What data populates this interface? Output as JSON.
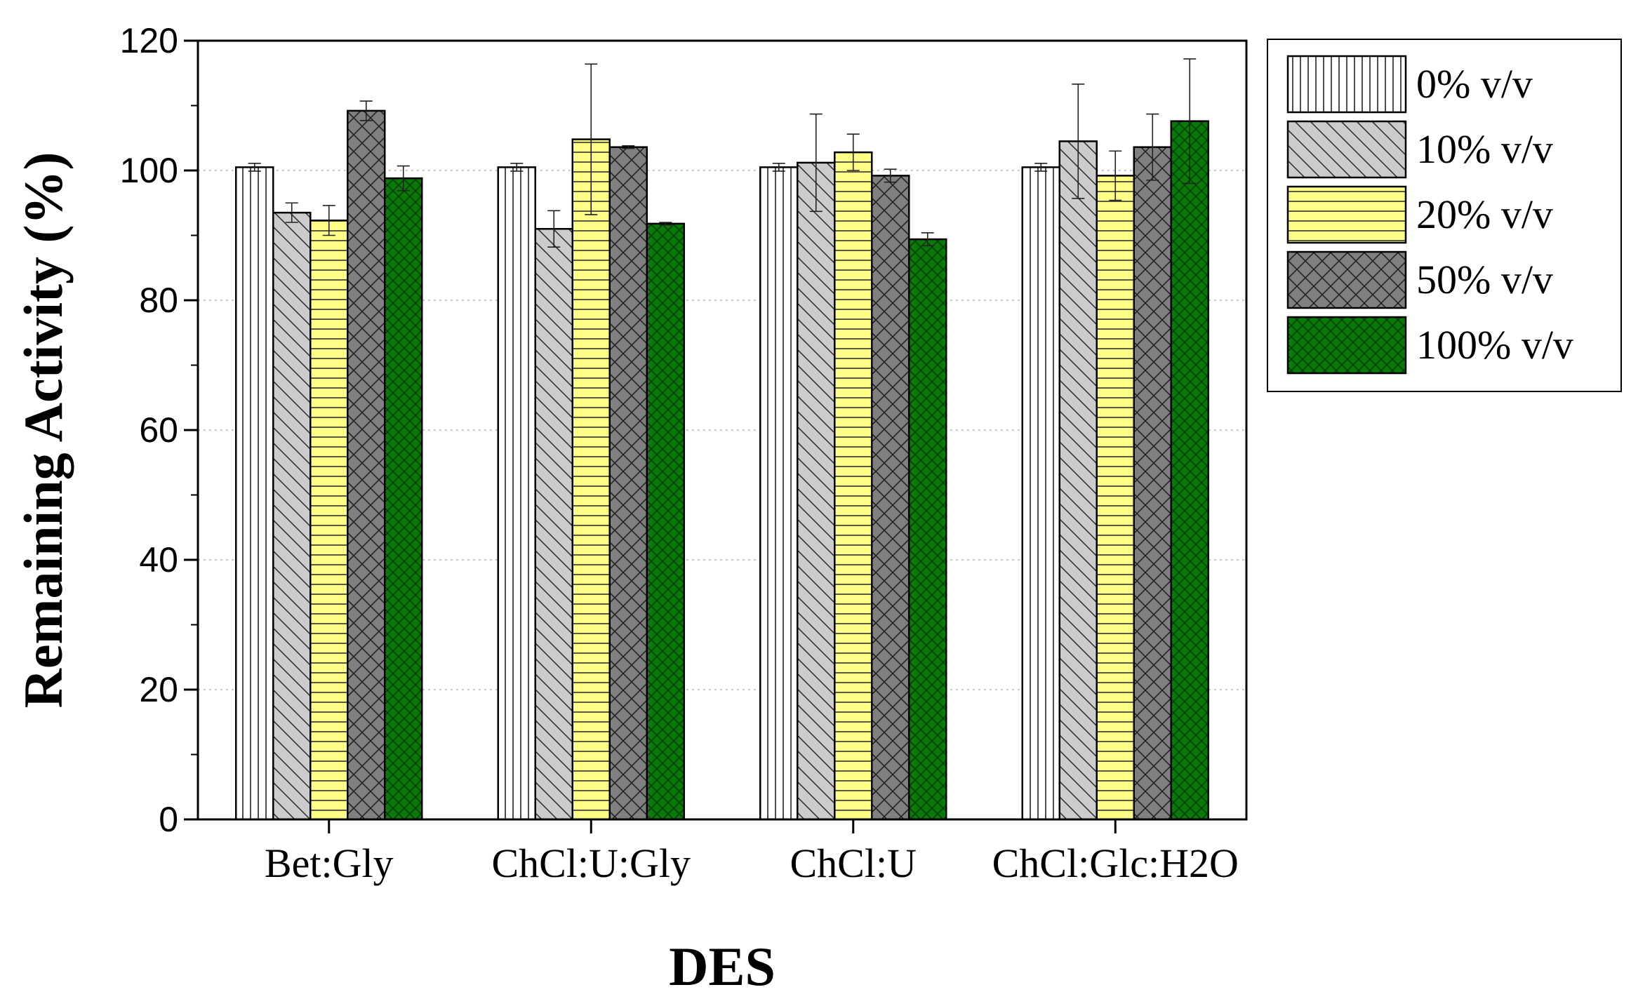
{
  "chart_data": {
    "type": "bar",
    "title": "",
    "xlabel": "DES",
    "ylabel": "Remaining Activity (%)",
    "ylim": [
      0,
      120
    ],
    "yticks": [
      0,
      20,
      40,
      60,
      80,
      100,
      120
    ],
    "ytick_labels": [
      "0",
      "20",
      "40",
      "60",
      "80",
      "100",
      "120"
    ],
    "grid": "dotted horizontal",
    "legend_position": "top-right outside",
    "categories": [
      "Bet:Gly",
      "ChCl:U:Gly",
      "ChCl:U",
      "ChCl:Glc:H2O"
    ],
    "series": [
      {
        "name": "0% v/v",
        "color": "#ffffff",
        "pattern": "vertical",
        "values": [
          100.5,
          100.5,
          100.5,
          100.5
        ],
        "errors": [
          0.6,
          0.6,
          0.6,
          0.6
        ]
      },
      {
        "name": "10% v/v",
        "color": "#cccccc",
        "pattern": "diagonal",
        "values": [
          93.5,
          91.0,
          101.2,
          104.5
        ],
        "errors": [
          1.5,
          2.8,
          7.5,
          8.8
        ]
      },
      {
        "name": "20% v/v",
        "color": "#ffff88",
        "pattern": "horizontal",
        "values": [
          92.3,
          104.8,
          102.8,
          99.2
        ],
        "errors": [
          2.3,
          11.6,
          2.8,
          3.8
        ]
      },
      {
        "name": "50% v/v",
        "color": "#808080",
        "pattern": "crosshatch",
        "values": [
          109.2,
          103.6,
          99.2,
          103.6
        ],
        "errors": [
          1.5,
          0.2,
          1.0,
          5.1
        ]
      },
      {
        "name": "100% v/v",
        "color": "#0b7a0b",
        "pattern": "crosshatch-fine",
        "values": [
          98.8,
          91.8,
          89.4,
          107.6
        ],
        "errors": [
          1.9,
          0.2,
          1.0,
          9.6
        ]
      }
    ]
  }
}
